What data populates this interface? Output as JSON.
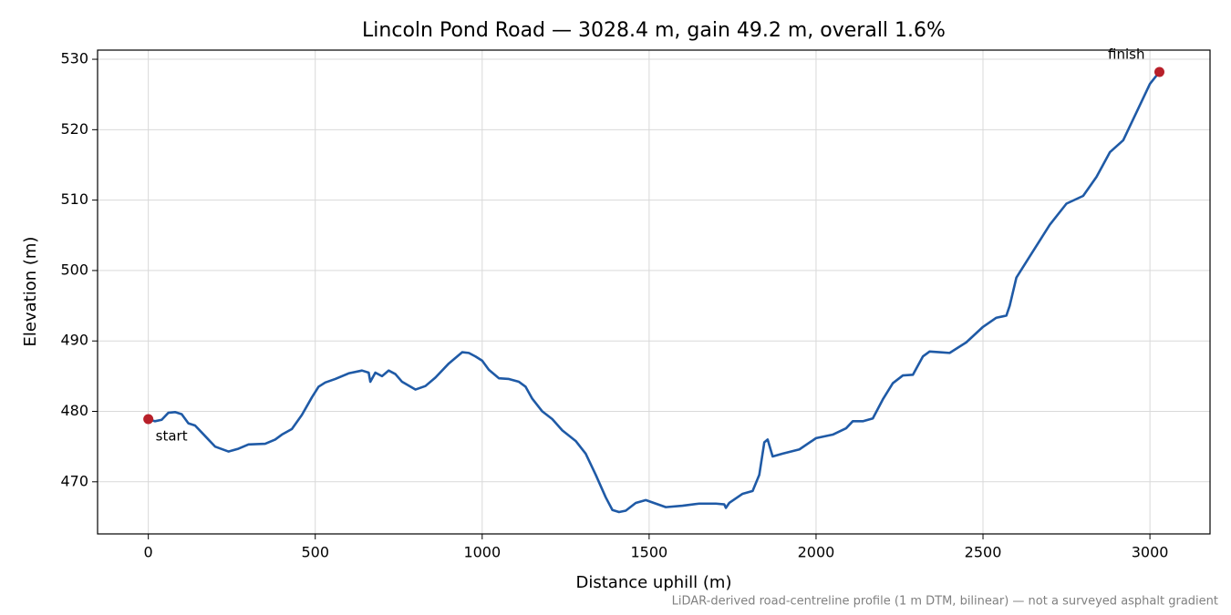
{
  "chart_data": {
    "type": "line",
    "title": "Lincoln Pond Road — 3028.4 m, gain 49.2 m, overall 1.6%",
    "x_label": "Distance uphill (m)",
    "y_label": "Elevation (m)",
    "footnote": "LiDAR-derived road-centreline profile (1 m DTM, bilinear) — not a surveyed asphalt gradient",
    "x": [
      0,
      20,
      40,
      60,
      80,
      100,
      120,
      140,
      160,
      180,
      200,
      240,
      270,
      300,
      350,
      380,
      400,
      430,
      460,
      490,
      510,
      530,
      560,
      600,
      640,
      660,
      665,
      680,
      700,
      720,
      740,
      760,
      800,
      830,
      860,
      900,
      940,
      960,
      980,
      1000,
      1020,
      1050,
      1080,
      1110,
      1130,
      1150,
      1180,
      1210,
      1240,
      1280,
      1310,
      1340,
      1370,
      1390,
      1410,
      1430,
      1460,
      1490,
      1520,
      1550,
      1600,
      1650,
      1700,
      1725,
      1730,
      1740,
      1780,
      1810,
      1830,
      1845,
      1855,
      1870,
      1900,
      1950,
      2000,
      2050,
      2090,
      2110,
      2140,
      2170,
      2200,
      2230,
      2260,
      2290,
      2320,
      2340,
      2370,
      2400,
      2450,
      2500,
      2540,
      2560,
      2570,
      2580,
      2600,
      2640,
      2700,
      2750,
      2800,
      2840,
      2880,
      2920,
      2960,
      3000,
      3028.4
    ],
    "series": [
      {
        "name": "Elevation",
        "color": "#1f5aa6",
        "values": [
          478.9,
          478.6,
          478.8,
          479.8,
          479.9,
          479.6,
          478.3,
          478.0,
          477.0,
          476.0,
          475.0,
          474.3,
          474.7,
          475.3,
          475.4,
          476.0,
          476.7,
          477.5,
          479.5,
          482.0,
          483.5,
          484.1,
          484.6,
          485.4,
          485.8,
          485.5,
          484.2,
          485.5,
          485.0,
          485.8,
          485.3,
          484.2,
          483.1,
          483.6,
          484.8,
          486.8,
          488.4,
          488.3,
          487.8,
          487.2,
          485.9,
          484.7,
          484.6,
          484.2,
          483.5,
          481.8,
          480.0,
          478.9,
          477.3,
          475.8,
          474.0,
          471.0,
          467.8,
          466.0,
          465.7,
          465.9,
          467.0,
          467.4,
          466.9,
          466.4,
          466.6,
          466.9,
          466.9,
          466.8,
          466.3,
          467.0,
          468.3,
          468.7,
          471.0,
          475.6,
          476.0,
          473.6,
          474.0,
          474.6,
          476.2,
          476.7,
          477.6,
          478.6,
          478.6,
          479.0,
          481.7,
          484.0,
          485.1,
          485.2,
          487.8,
          488.5,
          488.4,
          488.3,
          489.8,
          492.0,
          493.3,
          493.5,
          493.6,
          495.0,
          499.0,
          502.0,
          506.5,
          509.5,
          510.6,
          513.3,
          516.8,
          518.5,
          522.5,
          526.5,
          528.2
        ]
      }
    ],
    "markers": [
      {
        "label": "start",
        "x": 0,
        "y": 478.9,
        "color": "#b8202a"
      },
      {
        "label": "finish",
        "x": 3028.4,
        "y": 528.2,
        "color": "#b8202a"
      }
    ],
    "xlim": [
      -152,
      3180
    ],
    "ylim": [
      462.6,
      531.3
    ],
    "xticks": [
      0,
      500,
      1000,
      1500,
      2000,
      2500,
      3000
    ],
    "yticks": [
      470,
      480,
      490,
      500,
      510,
      520,
      530
    ],
    "grid": true
  }
}
